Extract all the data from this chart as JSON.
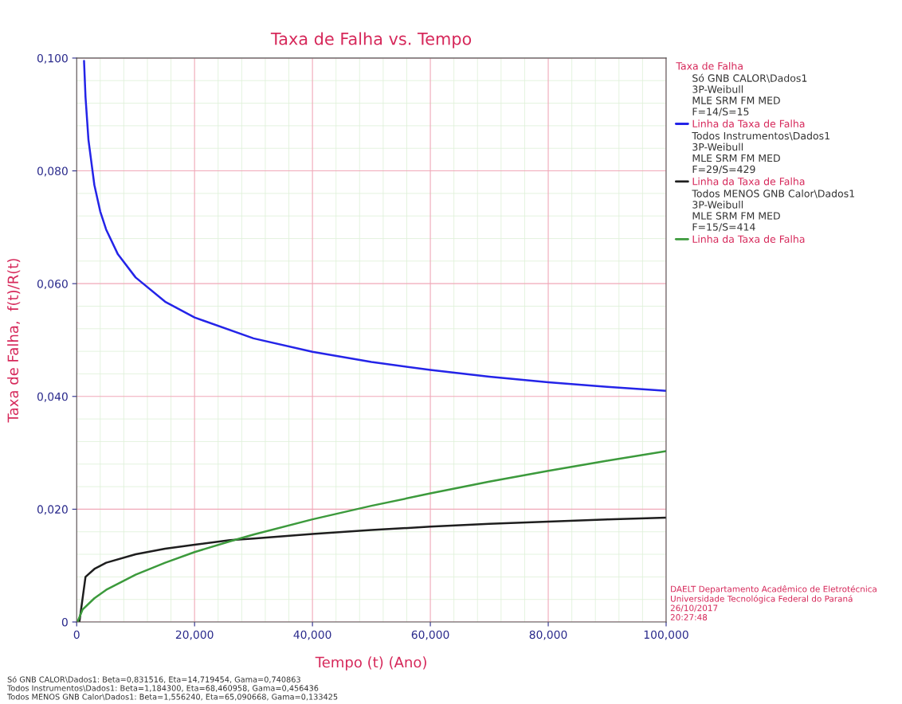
{
  "chart_data": {
    "type": "line",
    "title": "Taxa de Falha vs. Tempo",
    "xlabel": "Tempo (t) (Ano)",
    "ylabel": "Taxa de Falha,  f(t)/R(t)",
    "legend_title": "Taxa de Falha",
    "xlim": [
      0,
      100
    ],
    "ylim": [
      0,
      0.1
    ],
    "xticks": [
      0,
      {
        "value": 20,
        "label": "20,000"
      },
      {
        "value": 40,
        "label": "40,000"
      },
      {
        "value": 60,
        "label": "60,000"
      },
      {
        "value": 80,
        "label": "80,000"
      },
      {
        "value": 100,
        "label": "100,000"
      }
    ],
    "yticks": [
      0,
      {
        "value": 0.02,
        "label": "0,020"
      },
      {
        "value": 0.04,
        "label": "0,040"
      },
      {
        "value": 0.06,
        "label": "0,060"
      },
      {
        "value": 0.08,
        "label": "0,080"
      },
      {
        "value": 0.1,
        "label": "0,100"
      }
    ],
    "grid": true,
    "legend": "top right",
    "marker": "none",
    "line_style": "solid",
    "series": [
      {
        "name": "Linha da Taxa de Falha",
        "color": "#2424e8",
        "x": [
          1.25,
          1.5,
          2,
          3,
          4,
          5,
          7,
          10,
          15,
          20,
          30,
          40,
          50,
          60,
          70,
          80,
          90,
          100
        ],
        "values": [
          0.0995,
          0.0931,
          0.0855,
          0.0775,
          0.0728,
          0.0696,
          0.0652,
          0.0611,
          0.0568,
          0.054,
          0.0503,
          0.0479,
          0.0461,
          0.0447,
          0.0435,
          0.0425,
          0.0417,
          0.041
        ]
      },
      {
        "name": "Linha da Taxa de Falha",
        "color": "#1e1e1e",
        "x": [
          0.46,
          1.5,
          3,
          5,
          10,
          15,
          20,
          26,
          30,
          40,
          50,
          60,
          70,
          80,
          90,
          100
        ],
        "values": [
          0,
          0.008,
          0.0094,
          0.0105,
          0.012,
          0.013,
          0.0137,
          0.0145,
          0.0148,
          0.0156,
          0.0163,
          0.0169,
          0.0174,
          0.0178,
          0.0182,
          0.0185
        ]
      },
      {
        "name": "Linha da Taxa de Falha",
        "color": "#3c9a3c",
        "x": [
          0.13,
          1,
          3,
          5,
          10,
          15,
          20,
          26,
          30,
          40,
          50,
          60,
          70,
          80,
          90,
          100
        ],
        "values": [
          0,
          0.0022,
          0.0042,
          0.0057,
          0.0084,
          0.0105,
          0.0124,
          0.0143,
          0.0155,
          0.0182,
          0.0206,
          0.0228,
          0.0249,
          0.0268,
          0.0286,
          0.0303
        ]
      }
    ],
    "annotations": [
      "Só GNB CALOR\\Dados1\n3P-Weibull\nMLE SRM FM MED\nF=14/S=15",
      "Todos Instrumentos\\Dados1\n3P-Weibull\nMLE SRM FM MED\nF=29/S=429",
      "Todos MENOS GNB Calor\\Dados1\n3P-Weibull\nMLE SRM FM MED\nF=15/S=414",
      "DAELT Departamento Acadêmico de Eletrotécnica\nUniversidade Tecnológica Federal do Paraná\n26/10/2017\n20:27:48",
      "Só GNB CALOR\\Dados1: Beta=0,831516, Eta=14,719454, Gama=0,740863\nTodos Instrumentos\\Dados1: Beta=1,184300, Eta=68,460958, Gama=0,456436\nTodos MENOS GNB Calor\\Dados1: Beta=1,556240, Eta=65,090668, Gama=0,133425"
    ]
  }
}
